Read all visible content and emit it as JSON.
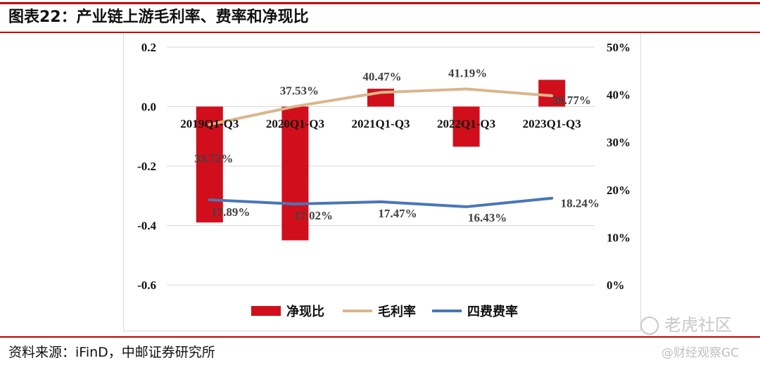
{
  "figure": {
    "title": "图表22：产业链上游毛利率、费率和净现比",
    "source": "资料来源：iFinD，中邮证券研究所"
  },
  "watermarks": {
    "brand_main": "老虎社区",
    "brand_sub": "@财经观察GC"
  },
  "colors": {
    "net_cash_ratio": "#d10f1c",
    "gross_margin": "#d9b68a",
    "expense_ratio": "#4a76b8",
    "accent": "#c00000"
  },
  "chart_data": {
    "type": "bar+line",
    "categories": [
      "2019Q1-Q3",
      "2020Q1-Q3",
      "2021Q1-Q3",
      "2022Q1-Q3",
      "2023Q1-Q3"
    ],
    "left_axis": {
      "min": -0.6,
      "max": 0.2,
      "ticks": [
        0.2,
        0.0,
        -0.2,
        -0.4,
        -0.6
      ],
      "tick_labels": [
        "0.2",
        "0.0",
        "-0.2",
        "-0.4",
        "-0.6"
      ]
    },
    "right_axis": {
      "min": 0,
      "max": 50,
      "ticks": [
        50,
        40,
        30,
        20,
        10,
        0
      ],
      "tick_labels": [
        "50%",
        "40%",
        "30%",
        "20%",
        "10%",
        "0%"
      ]
    },
    "series": [
      {
        "name": "净现比",
        "type": "bar",
        "axis": "left",
        "values": [
          -0.39,
          -0.45,
          0.06,
          -0.135,
          0.09
        ]
      },
      {
        "name": "毛利率",
        "type": "line",
        "axis": "right",
        "values": [
          33.72,
          37.53,
          40.47,
          41.19,
          39.77
        ],
        "labels": [
          "33.72%",
          "37.53%",
          "40.47%",
          "41.19%",
          "39.77%"
        ]
      },
      {
        "name": "四费费率",
        "type": "line",
        "axis": "right",
        "values": [
          17.89,
          17.02,
          17.47,
          16.43,
          18.24
        ],
        "labels": [
          "17.89%",
          "17.02%",
          "17.47%",
          "16.43%",
          "18.24%"
        ]
      }
    ],
    "legend_position": "bottom",
    "grid": true
  }
}
